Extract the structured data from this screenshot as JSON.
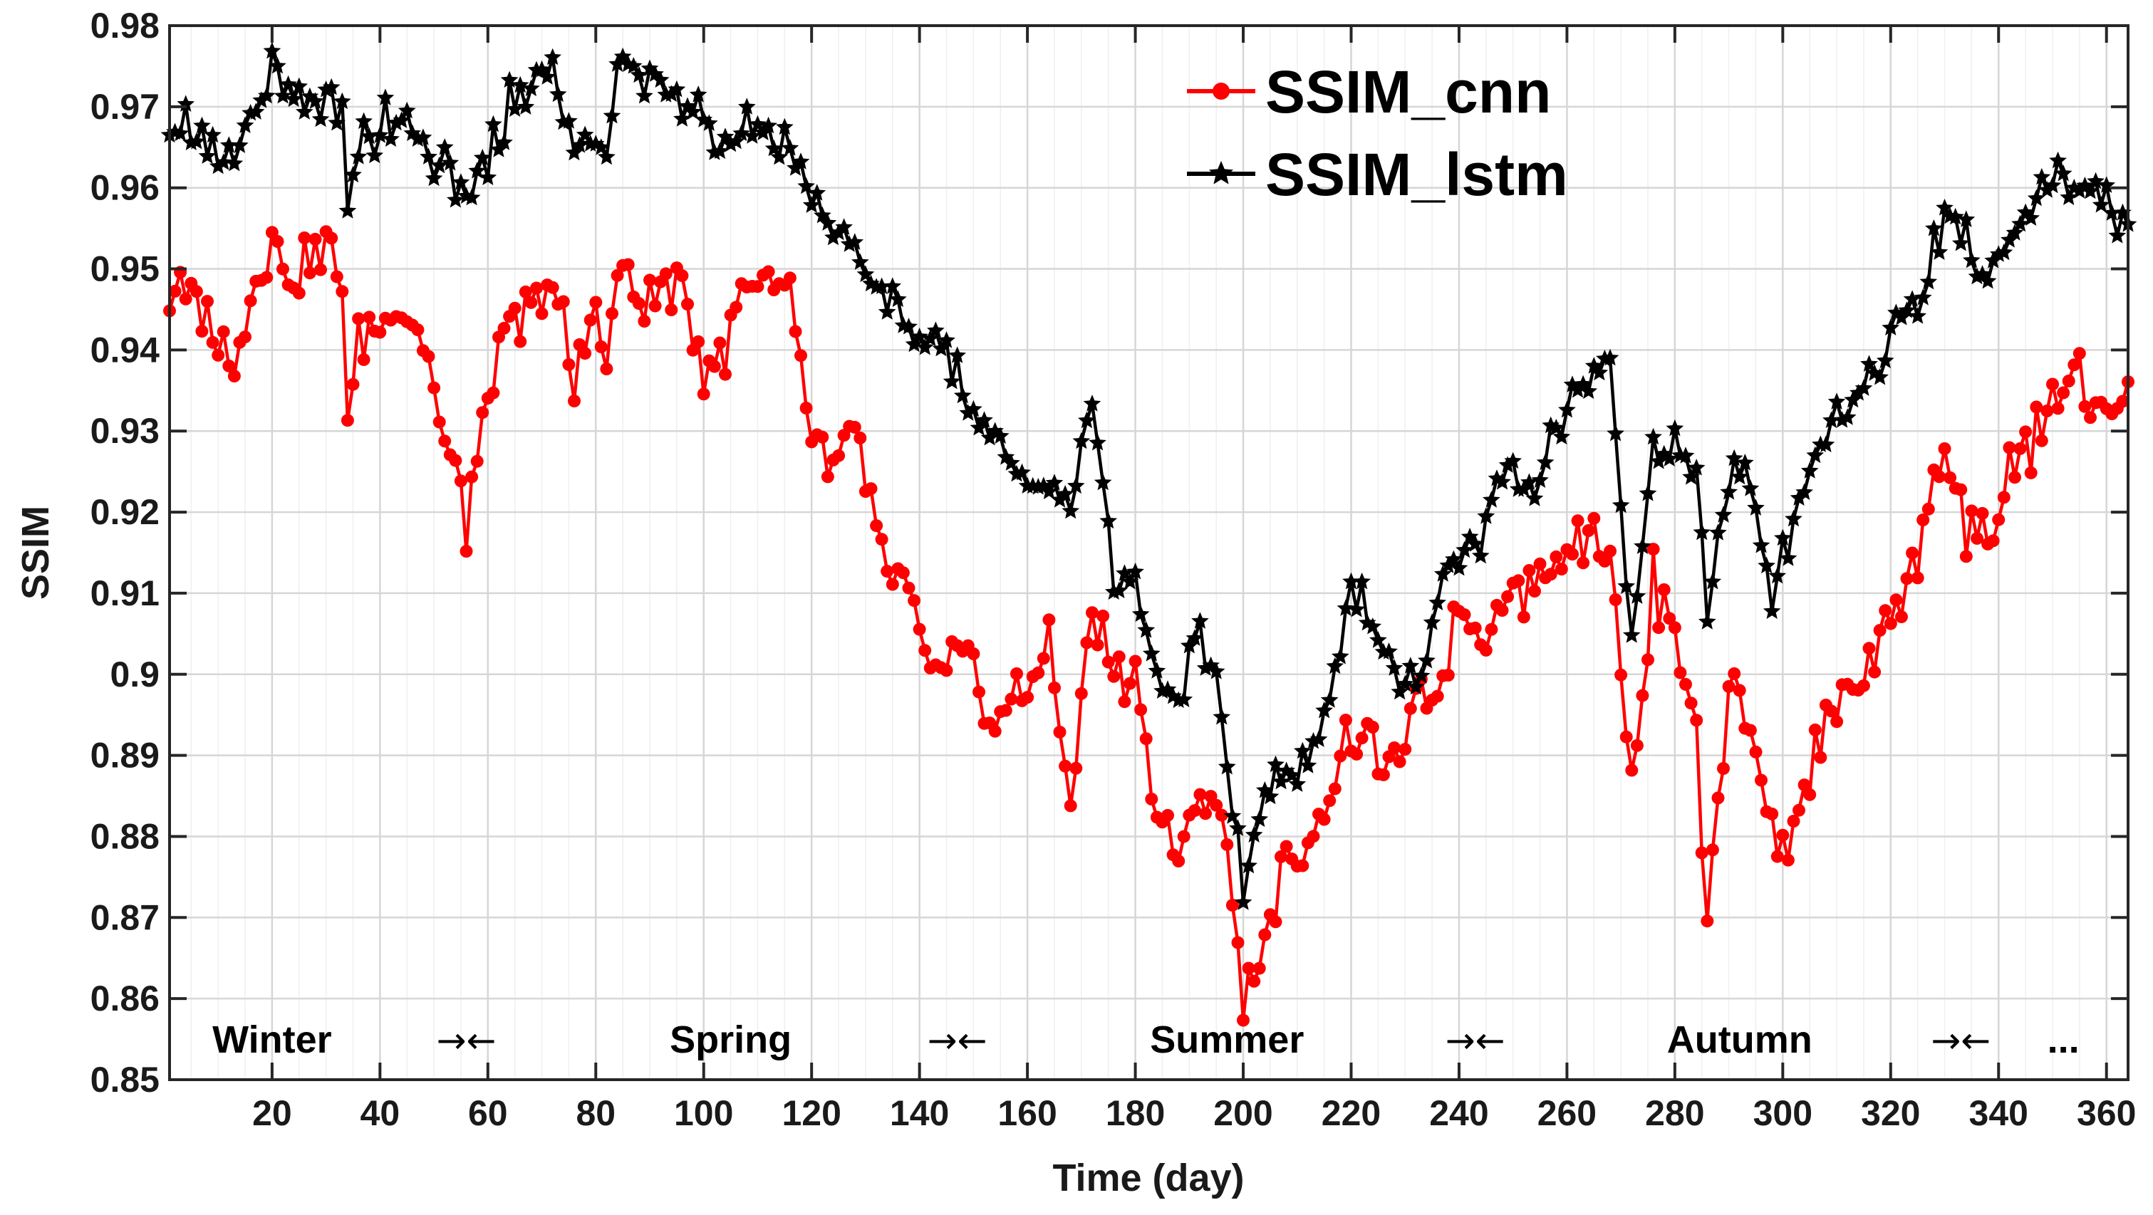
{
  "chart_data": {
    "type": "line",
    "title": "",
    "xlabel": "Time (day)",
    "ylabel": "SSIM",
    "xlim": [
      1,
      364
    ],
    "ylim": [
      0.85,
      0.98
    ],
    "grid": true,
    "legend_position": "top-right",
    "x_ticks": [
      20,
      40,
      60,
      80,
      100,
      120,
      140,
      160,
      180,
      200,
      220,
      240,
      260,
      280,
      300,
      320,
      340,
      360
    ],
    "y_ticks": [
      0.85,
      0.86,
      0.87,
      0.88,
      0.89,
      0.9,
      0.91,
      0.92,
      0.93,
      0.94,
      0.95,
      0.96,
      0.97,
      0.98
    ],
    "y_tick_labels": [
      "0.85",
      "0.86",
      "0.87",
      "0.88",
      "0.89",
      "0.9",
      "0.91",
      "0.92",
      "0.93",
      "0.94",
      "0.95",
      "0.96",
      "0.97",
      "0.98"
    ],
    "season_annotations": [
      {
        "text": "Winter",
        "x": 20
      },
      {
        "text": "→←",
        "x": 56
      },
      {
        "text": "Spring",
        "x": 105
      },
      {
        "text": "→←",
        "x": 147
      },
      {
        "text": "Summer",
        "x": 197
      },
      {
        "text": "→←",
        "x": 243
      },
      {
        "text": "Autumn",
        "x": 292
      },
      {
        "text": "→←",
        "x": 333
      },
      {
        "text": "...",
        "x": 352
      }
    ],
    "series": [
      {
        "name": "SSIM_cnn",
        "color": "#ff0000",
        "marker": "circle",
        "anchors": [
          [
            1,
            0.947
          ],
          [
            4,
            0.947
          ],
          [
            8,
            0.943
          ],
          [
            12,
            0.939
          ],
          [
            16,
            0.945
          ],
          [
            20,
            0.956
          ],
          [
            22,
            0.95
          ],
          [
            26,
            0.951
          ],
          [
            30,
            0.952
          ],
          [
            33,
            0.95
          ],
          [
            34,
            0.932
          ],
          [
            36,
            0.94
          ],
          [
            40,
            0.944
          ],
          [
            44,
            0.946
          ],
          [
            48,
            0.941
          ],
          [
            52,
            0.93
          ],
          [
            56,
            0.918
          ],
          [
            60,
            0.935
          ],
          [
            64,
            0.942
          ],
          [
            68,
            0.945
          ],
          [
            72,
            0.949
          ],
          [
            76,
            0.935
          ],
          [
            80,
            0.947
          ],
          [
            82,
            0.935
          ],
          [
            84,
            0.95
          ],
          [
            88,
            0.947
          ],
          [
            92,
            0.947
          ],
          [
            96,
            0.948
          ],
          [
            100,
            0.938
          ],
          [
            104,
            0.939
          ],
          [
            108,
            0.949
          ],
          [
            112,
            0.949
          ],
          [
            116,
            0.948
          ],
          [
            118,
            0.938
          ],
          [
            120,
            0.93
          ],
          [
            124,
            0.925
          ],
          [
            128,
            0.93
          ],
          [
            132,
            0.915
          ],
          [
            136,
            0.913
          ],
          [
            140,
            0.903
          ],
          [
            144,
            0.901
          ],
          [
            148,
            0.903
          ],
          [
            152,
            0.895
          ],
          [
            156,
            0.896
          ],
          [
            160,
            0.899
          ],
          [
            164,
            0.904
          ],
          [
            168,
            0.884
          ],
          [
            172,
            0.908
          ],
          [
            176,
            0.9
          ],
          [
            180,
            0.901
          ],
          [
            184,
            0.883
          ],
          [
            188,
            0.876
          ],
          [
            192,
            0.885
          ],
          [
            196,
            0.884
          ],
          [
            200,
            0.86
          ],
          [
            204,
            0.867
          ],
          [
            208,
            0.876
          ],
          [
            212,
            0.88
          ],
          [
            216,
            0.885
          ],
          [
            220,
            0.892
          ],
          [
            224,
            0.891
          ],
          [
            228,
            0.888
          ],
          [
            232,
            0.896
          ],
          [
            236,
            0.898
          ],
          [
            240,
            0.908
          ],
          [
            244,
            0.905
          ],
          [
            248,
            0.91
          ],
          [
            252,
            0.911
          ],
          [
            256,
            0.912
          ],
          [
            260,
            0.915
          ],
          [
            264,
            0.918
          ],
          [
            268,
            0.917
          ],
          [
            272,
            0.885
          ],
          [
            276,
            0.911
          ],
          [
            280,
            0.906
          ],
          [
            284,
            0.892
          ],
          [
            286,
            0.87
          ],
          [
            290,
            0.899
          ],
          [
            294,
            0.893
          ],
          [
            298,
            0.882
          ],
          [
            302,
            0.88
          ],
          [
            306,
            0.89
          ],
          [
            310,
            0.896
          ],
          [
            314,
            0.897
          ],
          [
            318,
            0.902
          ],
          [
            322,
            0.908
          ],
          [
            326,
            0.918
          ],
          [
            330,
            0.93
          ],
          [
            334,
            0.917
          ],
          [
            338,
            0.917
          ],
          [
            342,
            0.925
          ],
          [
            346,
            0.928
          ],
          [
            350,
            0.933
          ],
          [
            354,
            0.938
          ],
          [
            358,
            0.93
          ],
          [
            362,
            0.934
          ],
          [
            364,
            0.935
          ]
        ]
      },
      {
        "name": "SSIM_lstm",
        "color": "#000000",
        "marker": "star",
        "anchors": [
          [
            1,
            0.969
          ],
          [
            4,
            0.968
          ],
          [
            8,
            0.966
          ],
          [
            12,
            0.963
          ],
          [
            16,
            0.969
          ],
          [
            20,
            0.975
          ],
          [
            22,
            0.972
          ],
          [
            26,
            0.969
          ],
          [
            30,
            0.971
          ],
          [
            33,
            0.972
          ],
          [
            34,
            0.957
          ],
          [
            36,
            0.965
          ],
          [
            40,
            0.968
          ],
          [
            44,
            0.969
          ],
          [
            48,
            0.966
          ],
          [
            52,
            0.963
          ],
          [
            56,
            0.957
          ],
          [
            60,
            0.964
          ],
          [
            64,
            0.97
          ],
          [
            68,
            0.973
          ],
          [
            72,
            0.975
          ],
          [
            76,
            0.964
          ],
          [
            80,
            0.967
          ],
          [
            82,
            0.966
          ],
          [
            84,
            0.976
          ],
          [
            88,
            0.973
          ],
          [
            92,
            0.972
          ],
          [
            96,
            0.97
          ],
          [
            100,
            0.968
          ],
          [
            104,
            0.966
          ],
          [
            108,
            0.969
          ],
          [
            112,
            0.967
          ],
          [
            116,
            0.966
          ],
          [
            120,
            0.958
          ],
          [
            124,
            0.955
          ],
          [
            128,
            0.953
          ],
          [
            132,
            0.948
          ],
          [
            136,
            0.945
          ],
          [
            140,
            0.942
          ],
          [
            144,
            0.94
          ],
          [
            148,
            0.935
          ],
          [
            152,
            0.932
          ],
          [
            156,
            0.928
          ],
          [
            160,
            0.924
          ],
          [
            164,
            0.922
          ],
          [
            168,
            0.92
          ],
          [
            172,
            0.934
          ],
          [
            176,
            0.91
          ],
          [
            180,
            0.912
          ],
          [
            184,
            0.9
          ],
          [
            188,
            0.897
          ],
          [
            192,
            0.905
          ],
          [
            196,
            0.894
          ],
          [
            200,
            0.875
          ],
          [
            204,
            0.884
          ],
          [
            208,
            0.889
          ],
          [
            212,
            0.89
          ],
          [
            216,
            0.896
          ],
          [
            220,
            0.911
          ],
          [
            224,
            0.906
          ],
          [
            228,
            0.899
          ],
          [
            232,
            0.9
          ],
          [
            236,
            0.908
          ],
          [
            240,
            0.916
          ],
          [
            244,
            0.918
          ],
          [
            248,
            0.925
          ],
          [
            252,
            0.921
          ],
          [
            256,
            0.926
          ],
          [
            260,
            0.933
          ],
          [
            264,
            0.938
          ],
          [
            268,
            0.939
          ],
          [
            272,
            0.905
          ],
          [
            276,
            0.927
          ],
          [
            280,
            0.928
          ],
          [
            284,
            0.924
          ],
          [
            286,
            0.908
          ],
          [
            290,
            0.924
          ],
          [
            294,
            0.925
          ],
          [
            298,
            0.908
          ],
          [
            302,
            0.92
          ],
          [
            306,
            0.926
          ],
          [
            310,
            0.932
          ],
          [
            314,
            0.934
          ],
          [
            318,
            0.938
          ],
          [
            322,
            0.943
          ],
          [
            326,
            0.947
          ],
          [
            330,
            0.958
          ],
          [
            334,
            0.955
          ],
          [
            338,
            0.948
          ],
          [
            342,
            0.954
          ],
          [
            346,
            0.957
          ],
          [
            350,
            0.96
          ],
          [
            354,
            0.963
          ],
          [
            358,
            0.961
          ],
          [
            362,
            0.957
          ],
          [
            364,
            0.958
          ]
        ]
      }
    ]
  }
}
